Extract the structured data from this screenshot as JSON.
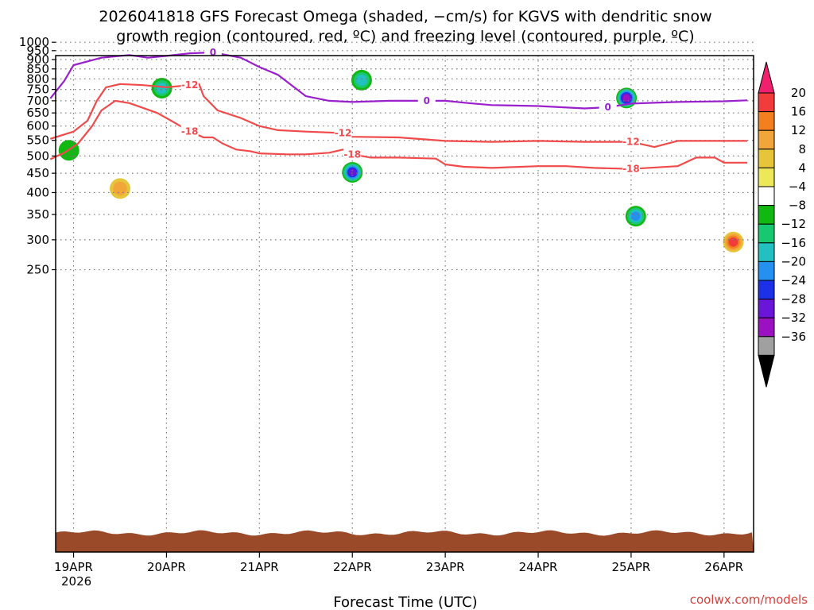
{
  "chart_data": {
    "type": "heatmap",
    "title_line1": "2026041818 GFS Forecast Omega (shaded, −cm/s) for KGVS with dendritic snow",
    "title_line2": "growth region (contoured, red, ºC) and freezing level (contoured, purple, ºC)",
    "xlabel": "Forecast Time (UTC)",
    "ylabel": "",
    "credit": "coolwx.com/models",
    "x_ticks": [
      "19APR",
      "20APR",
      "21APR",
      "22APR",
      "23APR",
      "24APR",
      "25APR",
      "26APR"
    ],
    "x_year": "2026",
    "y_ticks": [
      250,
      300,
      350,
      400,
      450,
      500,
      550,
      600,
      650,
      700,
      750,
      800,
      850,
      900,
      950,
      1000
    ],
    "y_scale": "log-pressure",
    "grid": true,
    "colorbar": {
      "labels": [
        "20",
        "16",
        "12",
        "8",
        "4",
        "−4",
        "−8",
        "−12",
        "−16",
        "−20",
        "−24",
        "−28",
        "−32",
        "−36"
      ],
      "colors": [
        "#f0206e",
        "#f23b3b",
        "#f2801f",
        "#f2a63a",
        "#e6c53a",
        "#ece85a",
        "#ffffff",
        "#12b812",
        "#18c870",
        "#22c0c0",
        "#2490f0",
        "#1c30e8",
        "#6a16d8",
        "#9b10c0",
        "#a0a0a0",
        "#000000"
      ]
    },
    "contours": [
      {
        "name": "-18",
        "color": "#f04a4a",
        "points": [
          [
            18.75,
            490
          ],
          [
            18.9,
            510
          ],
          [
            19.05,
            540
          ],
          [
            19.2,
            600
          ],
          [
            19.3,
            660
          ],
          [
            19.45,
            700
          ],
          [
            19.6,
            690
          ],
          [
            19.75,
            670
          ],
          [
            19.9,
            650
          ],
          [
            20.0,
            630
          ],
          [
            20.1,
            610
          ],
          [
            20.25,
            580
          ],
          [
            20.4,
            560
          ],
          [
            20.5,
            560
          ],
          [
            20.6,
            540
          ],
          [
            20.75,
            520
          ],
          [
            20.9,
            515
          ],
          [
            21.0,
            508
          ],
          [
            21.3,
            505
          ],
          [
            21.5,
            505
          ],
          [
            21.75,
            510
          ],
          [
            21.9,
            520
          ],
          [
            22.0,
            505
          ],
          [
            22.2,
            495
          ],
          [
            22.5,
            495
          ],
          [
            22.9,
            492
          ],
          [
            23.0,
            475
          ],
          [
            23.2,
            468
          ],
          [
            23.5,
            465
          ],
          [
            24.0,
            470
          ],
          [
            24.3,
            470
          ],
          [
            24.6,
            465
          ],
          [
            25.0,
            462
          ],
          [
            25.5,
            470
          ],
          [
            25.7,
            495
          ],
          [
            25.9,
            495
          ],
          [
            26.0,
            480
          ],
          [
            26.25,
            480
          ]
        ]
      },
      {
        "name": "-12",
        "color": "#f04a4a",
        "points": [
          [
            18.75,
            555
          ],
          [
            19.0,
            580
          ],
          [
            19.15,
            620
          ],
          [
            19.25,
            700
          ],
          [
            19.35,
            760
          ],
          [
            19.5,
            775
          ],
          [
            19.75,
            770
          ],
          [
            20.0,
            760
          ],
          [
            20.25,
            770
          ],
          [
            20.35,
            775
          ],
          [
            20.4,
            720
          ],
          [
            20.55,
            660
          ],
          [
            20.8,
            630
          ],
          [
            21.0,
            600
          ],
          [
            21.2,
            585
          ],
          [
            21.5,
            580
          ],
          [
            21.9,
            575
          ],
          [
            22.0,
            562
          ],
          [
            22.5,
            560
          ],
          [
            23.0,
            548
          ],
          [
            23.5,
            545
          ],
          [
            24.0,
            548
          ],
          [
            24.5,
            545
          ],
          [
            25.0,
            545
          ],
          [
            25.25,
            528
          ],
          [
            25.5,
            548
          ],
          [
            26.0,
            548
          ],
          [
            26.25,
            548
          ]
        ]
      },
      {
        "name": "0",
        "color": "#9a1fcd",
        "points": [
          [
            18.75,
            710
          ],
          [
            18.9,
            790
          ],
          [
            19.0,
            870
          ],
          [
            19.3,
            910
          ],
          [
            19.6,
            925
          ],
          [
            19.8,
            910
          ],
          [
            20.0,
            920
          ],
          [
            20.25,
            935
          ],
          [
            20.5,
            940
          ],
          [
            20.8,
            910
          ],
          [
            21.0,
            860
          ],
          [
            21.2,
            820
          ],
          [
            21.5,
            720
          ],
          [
            21.75,
            700
          ],
          [
            22.0,
            695
          ],
          [
            22.4,
            700
          ],
          [
            22.8,
            700
          ],
          [
            23.0,
            700
          ],
          [
            23.25,
            690
          ],
          [
            23.5,
            682
          ],
          [
            24.0,
            678
          ],
          [
            24.5,
            668
          ],
          [
            24.75,
            673
          ],
          [
            25.0,
            688
          ],
          [
            25.5,
            695
          ],
          [
            26.0,
            698
          ],
          [
            26.25,
            702
          ]
        ]
      }
    ],
    "omega_features": [
      {
        "time": 18.95,
        "p_top": 400,
        "p_bottom": 670,
        "value": -8
      },
      {
        "time": 19.5,
        "p_top": 300,
        "p_bottom": 560,
        "value": 8
      },
      {
        "time": 19.95,
        "p_top": 620,
        "p_bottom": 940,
        "value": -14
      },
      {
        "time": 22.0,
        "p_top": 320,
        "p_bottom": 640,
        "value": -28
      },
      {
        "time": 22.1,
        "p_top": 700,
        "p_bottom": 900,
        "value": -14
      },
      {
        "time": 24.95,
        "p_top": 550,
        "p_bottom": 940,
        "value": -30
      },
      {
        "time": 25.05,
        "p_top": 300,
        "p_bottom": 400,
        "value": -20
      },
      {
        "time": 26.1,
        "p_top": 250,
        "p_bottom": 350,
        "value": 18
      }
    ]
  }
}
